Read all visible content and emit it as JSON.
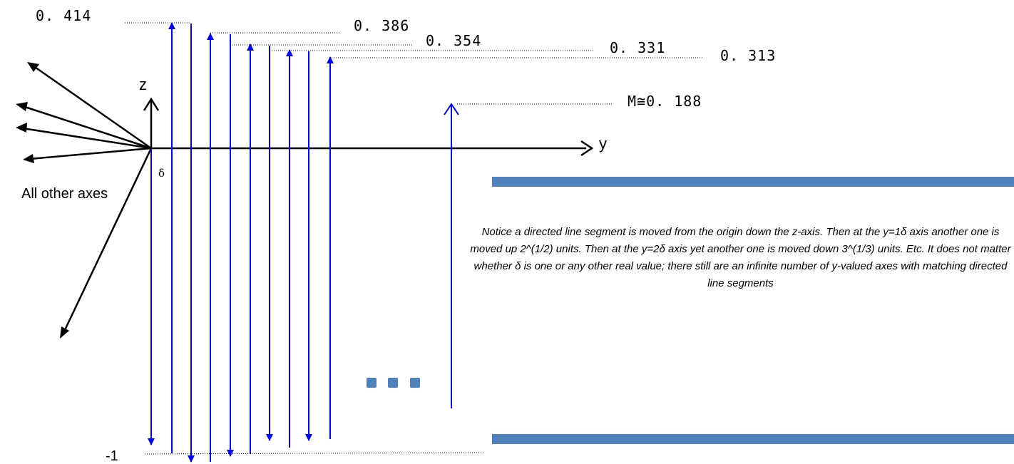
{
  "labels": {
    "top_values": [
      "0. 414",
      "0. 386",
      "0. 354",
      "0. 331",
      "0. 313"
    ],
    "m_value": "M≅0. 188",
    "bottom_value": "-1",
    "z_axis": "z",
    "y_axis": "y",
    "delta": "δ",
    "other_axes": "All other axes"
  },
  "caption": "Notice a directed line segment is moved from the origin down the z-axis. Then at the y=1δ axis another one is moved up 2^(1/2) units. Then at the y=2δ axis yet another one is moved down 3^(1/3) units. Etc. It does not matter whether δ is one or any other real value; there still are an infinite number of y-valued axes with matching directed line segments",
  "colors": {
    "arrow_blue": "#0000ff",
    "band_blue": "#4f81bd",
    "axis_black": "#000000"
  }
}
